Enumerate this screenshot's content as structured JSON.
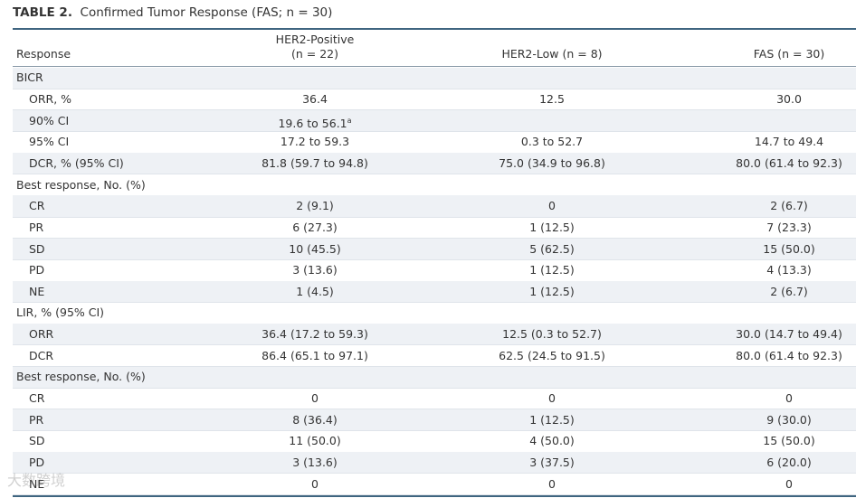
{
  "title": {
    "label": "TABLE 2.",
    "text": "Confirmed Tumor Response (FAS; n = 30)"
  },
  "table": {
    "header": [
      {
        "lines": [
          "Response"
        ]
      },
      {
        "lines": [
          "HER2-Positive",
          "(n = 22)"
        ]
      },
      {
        "lines": [
          "HER2-Low (n = 8)"
        ]
      },
      {
        "lines": [
          "FAS (n = 30)"
        ]
      }
    ],
    "rows": [
      {
        "label": "BICR"
      },
      {
        "label": "ORR, %",
        "sub": true,
        "cells": [
          "36.4",
          "12.5",
          "30.0"
        ]
      },
      {
        "label": "90% CI",
        "sub": true,
        "cells": [
          "19.6 to 56.1"
        ],
        "note": "a"
      },
      {
        "label": "95% CI",
        "sub": true,
        "cells": [
          "17.2 to 59.3",
          "0.3 to 52.7",
          "14.7 to 49.4"
        ]
      },
      {
        "label": "DCR, % (95% CI)",
        "sub": true,
        "cells": [
          "81.8 (59.7 to 94.8)",
          "75.0 (34.9 to 96.8)",
          "80.0 (61.4 to 92.3)"
        ]
      },
      {
        "label": "Best response, No. (%)"
      },
      {
        "label": "CR",
        "sub": true,
        "cells": [
          "2 (9.1)",
          "0",
          "2 (6.7)"
        ]
      },
      {
        "label": "PR",
        "sub": true,
        "cells": [
          "6 (27.3)",
          "1 (12.5)",
          "7 (23.3)"
        ]
      },
      {
        "label": "SD",
        "sub": true,
        "cells": [
          "10 (45.5)",
          "5 (62.5)",
          "15 (50.0)"
        ]
      },
      {
        "label": "PD",
        "sub": true,
        "cells": [
          "3 (13.6)",
          "1 (12.5)",
          "4 (13.3)"
        ]
      },
      {
        "label": "NE",
        "sub": true,
        "cells": [
          "1 (4.5)",
          "1 (12.5)",
          "2 (6.7)"
        ]
      },
      {
        "label": "LIR, % (95% CI)"
      },
      {
        "label": "ORR",
        "sub": true,
        "cells": [
          "36.4 (17.2 to 59.3)",
          "12.5 (0.3 to 52.7)",
          "30.0 (14.7 to 49.4)"
        ]
      },
      {
        "label": "DCR",
        "sub": true,
        "cells": [
          "86.4 (65.1 to 97.1)",
          "62.5 (24.5 to 91.5)",
          "80.0 (61.4 to 92.3)"
        ]
      },
      {
        "label": "Best response, No. (%)"
      },
      {
        "label": "CR",
        "sub": true,
        "cells": [
          "0",
          "0",
          "0"
        ]
      },
      {
        "label": "PR",
        "sub": true,
        "cells": [
          "8 (36.4)",
          "1 (12.5)",
          "9 (30.0)"
        ]
      },
      {
        "label": "SD",
        "sub": true,
        "cells": [
          "11 (50.0)",
          "4 (50.0)",
          "15 (50.0)"
        ]
      },
      {
        "label": "PD",
        "sub": true,
        "cells": [
          "3 (13.6)",
          "3 (37.5)",
          "6 (20.0)"
        ]
      },
      {
        "label": "NE",
        "sub": true,
        "cells": [
          "0",
          "0",
          "0"
        ]
      }
    ]
  },
  "watermark": "大数跨境"
}
